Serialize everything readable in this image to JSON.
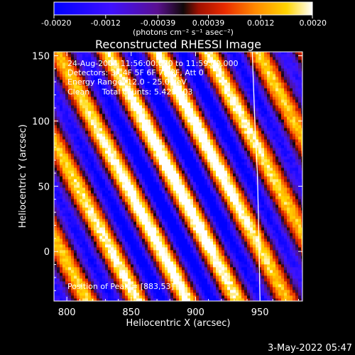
{
  "chart_data": {
    "type": "heatmap",
    "title": "Reconstructed RHESSI Image",
    "xlabel": "Heliocentric X (arcsec)",
    "ylabel": "Heliocentric Y (arcsec)",
    "xlim": [
      790,
      983
    ],
    "ylim": [
      -38,
      153
    ],
    "x_ticks": [
      "800",
      "850",
      "900",
      "950"
    ],
    "y_ticks": [
      "0",
      "50",
      "100",
      "150"
    ],
    "colorbar": {
      "unit_label": "(photons cm⁻² s⁻¹ asec⁻²)",
      "ticks": [
        "-0.0020",
        "-0.0012",
        "-0.00039",
        "0.00039",
        "0.0012",
        "0.0020"
      ],
      "range": [
        -0.002,
        0.002
      ]
    },
    "info_lines": [
      "24-Aug-2004 11:56:00.000 to 11:59:00.000",
      "Detectors: 3F 4F 5F 6F 7F 8F, Att 0",
      "Energy Range: 12.0 - 25.0 keV",
      "Clean     Total counts: 5.42E+03"
    ],
    "peak_text": "Position of Peak = [883,53]",
    "peak_position": [
      883,
      53
    ],
    "limb_contour": [
      [
        944,
        153
      ],
      [
        946,
        100
      ],
      [
        948,
        60
      ],
      [
        949,
        20
      ],
      [
        950,
        -38
      ]
    ],
    "stripe_slope_x_per_y": -0.53,
    "stripe_period_x": 39
  },
  "timestamp": "3-May-2022 05:47",
  "colors": {
    "background": "#000000",
    "limb": "#ffffff"
  }
}
